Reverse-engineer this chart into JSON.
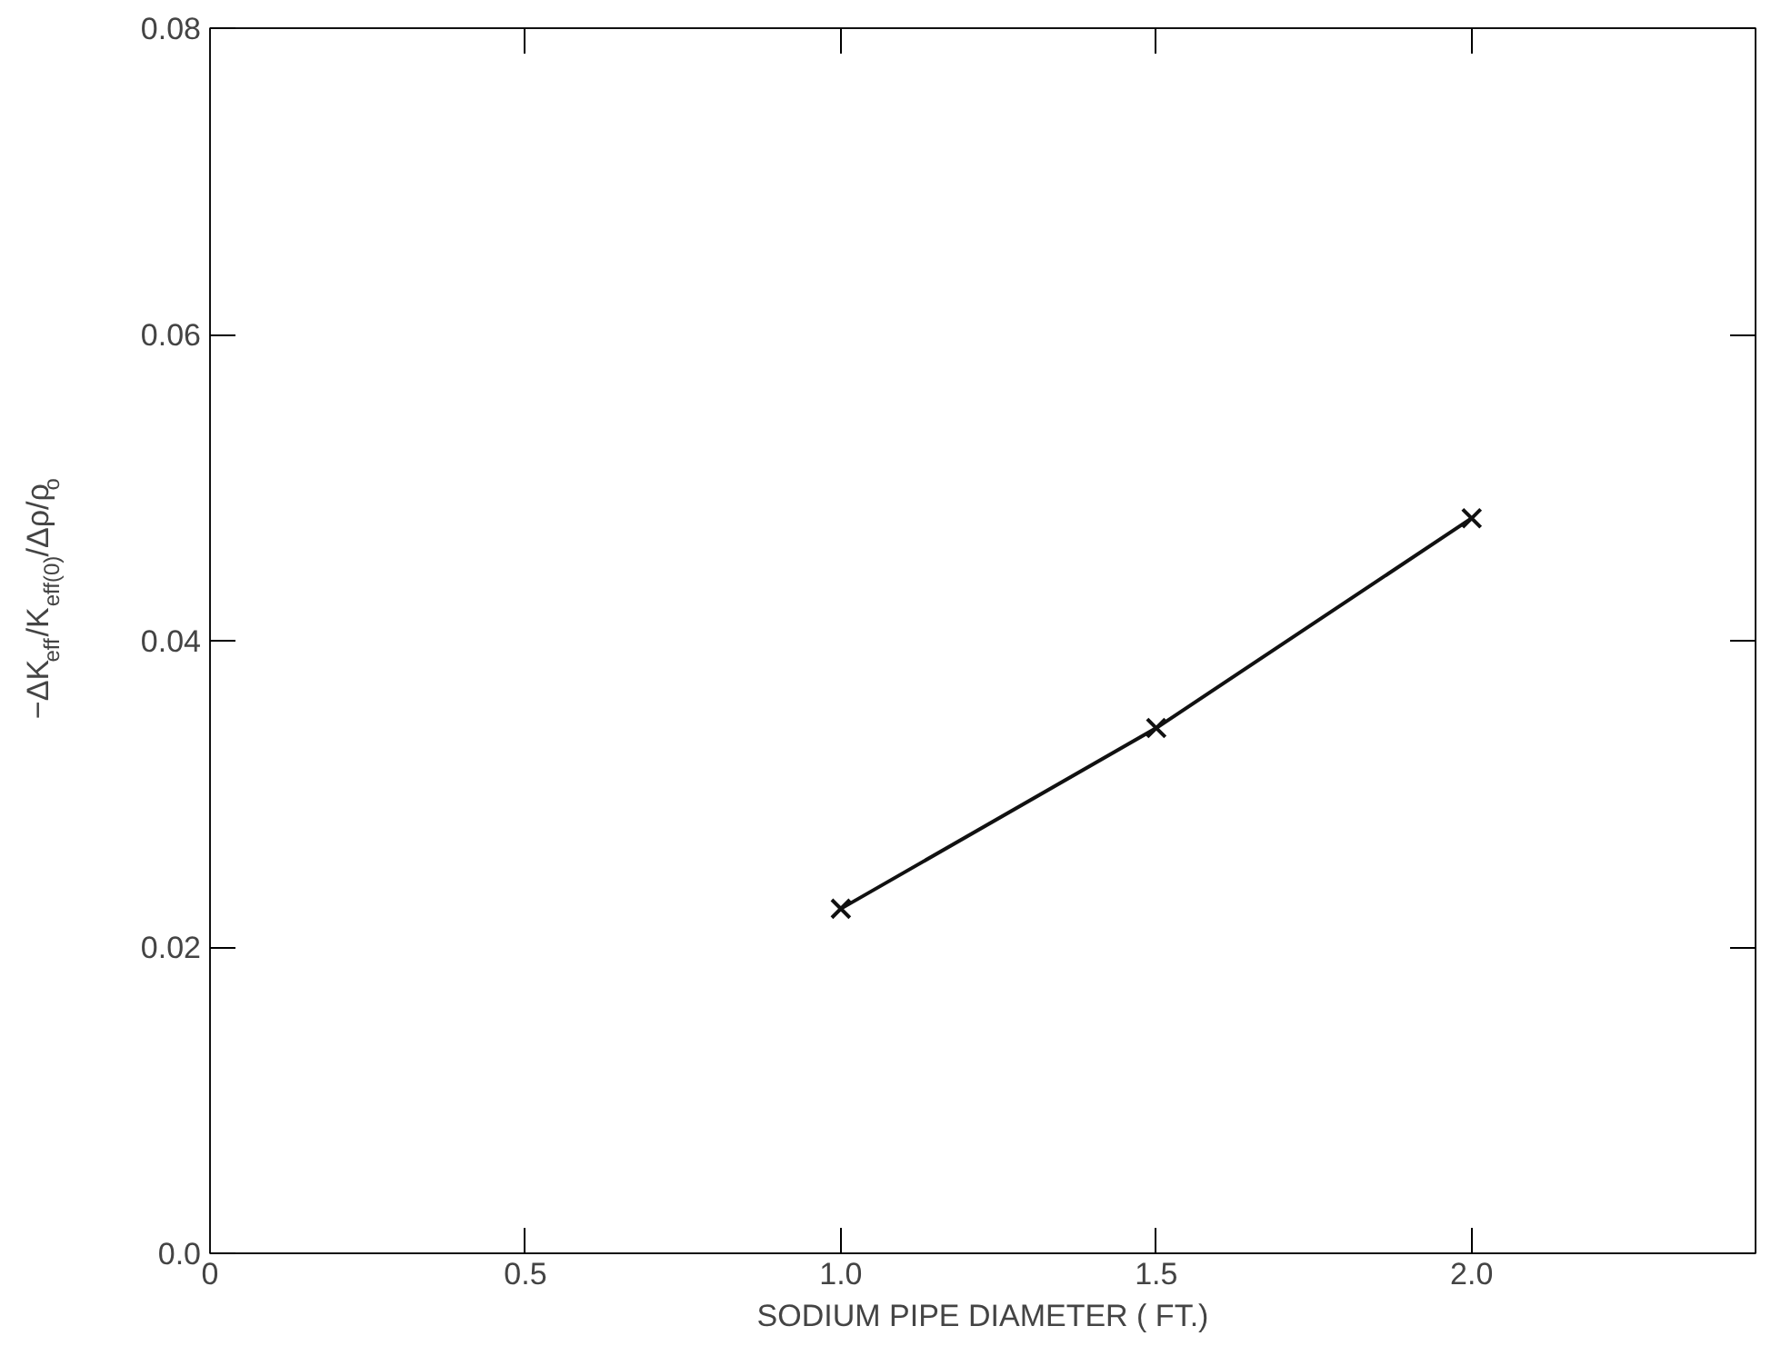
{
  "chart_data": {
    "type": "line",
    "xlabel": "SODIUM PIPE DIAMETER ( FT.)",
    "ylabel": "−ΔK$_{eff}$/K$_{eff(0)}$/Δρ/ρ$_{o}$",
    "x": [
      1.0,
      1.5,
      2.0
    ],
    "values": [
      0.0225,
      0.0343,
      0.048
    ],
    "color": "#111111",
    "marker": "cross",
    "line_style": "solid",
    "xlim": [
      0,
      2.45
    ],
    "xticks": [
      {
        "value": 0,
        "label": "0"
      },
      0.5,
      {
        "value": 1,
        "label": "1.0"
      },
      1.5,
      {
        "value": 2,
        "label": "2.0"
      }
    ],
    "ylim": [
      0,
      0.08
    ],
    "yticks": [
      {
        "value": 0,
        "label": "0.0"
      },
      0.02,
      0.04,
      0.06,
      0.08
    ],
    "grid": false
  }
}
